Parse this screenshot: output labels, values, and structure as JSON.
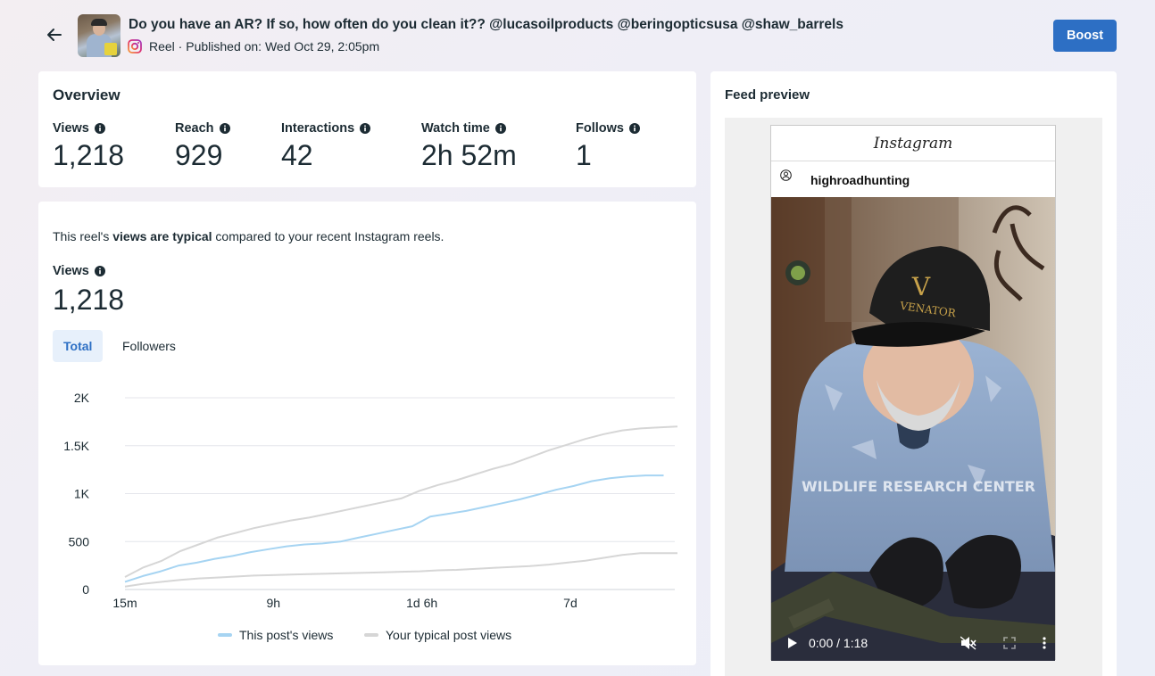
{
  "post": {
    "title": "Do you have an AR? If so, how often do you clean it?? @lucasoilproducts @beringopticsusa @shaw_barrels",
    "meta": "Reel · Published on: Wed Oct 29, 2:05pm"
  },
  "toolbar": {
    "boost_label": "Boost"
  },
  "overview": {
    "heading": "Overview",
    "metrics": [
      {
        "label": "Views",
        "value": "1,218"
      },
      {
        "label": "Reach",
        "value": "929"
      },
      {
        "label": "Interactions",
        "value": "42"
      },
      {
        "label": "Watch time",
        "value": "2h 52m"
      },
      {
        "label": "Follows",
        "value": "1"
      }
    ]
  },
  "views_card": {
    "summary_prefix": "This reel's ",
    "summary_bold": "views are typical",
    "summary_suffix": " compared to your recent Instagram reels.",
    "label": "Views",
    "value": "1,218",
    "tabs": [
      {
        "label": "Total",
        "active": true
      },
      {
        "label": "Followers",
        "active": false
      }
    ]
  },
  "chart_data": {
    "type": "line",
    "y_ticks": [
      "0",
      "500",
      "1K",
      "1.5K",
      "2K"
    ],
    "x_ticks": [
      "15m",
      "9h",
      "1d 6h",
      "7d"
    ],
    "ylim": [
      0,
      2000
    ],
    "grid": true,
    "legend_position": "bottom",
    "series": [
      {
        "name": "This post's views",
        "color": "#a6d4f2",
        "values": [
          80,
          140,
          190,
          250,
          280,
          320,
          350,
          390,
          420,
          450,
          470,
          480,
          500,
          540,
          580,
          620,
          660,
          760,
          790,
          820,
          860,
          900,
          940,
          990,
          1040,
          1080,
          1130,
          1160,
          1180,
          1190,
          1190
        ]
      },
      {
        "name": "Your typical post views",
        "color": "#d6d6d6",
        "values": [
          130,
          230,
          300,
          400,
          470,
          540,
          590,
          640,
          680,
          720,
          750,
          790,
          830,
          870,
          910,
          950,
          1030,
          1090,
          1140,
          1200,
          1260,
          1310,
          1380,
          1450,
          1510,
          1570,
          1620,
          1660,
          1680,
          1690,
          1700
        ]
      },
      {
        "name": "",
        "color": "#d6d6d6",
        "values": [
          30,
          60,
          80,
          100,
          115,
          125,
          135,
          145,
          150,
          155,
          160,
          165,
          170,
          175,
          180,
          185,
          190,
          200,
          205,
          215,
          225,
          235,
          245,
          260,
          280,
          300,
          330,
          360,
          380,
          380,
          380
        ]
      }
    ]
  },
  "preview": {
    "heading": "Feed preview",
    "ig_brand": "Instagram",
    "account": "highroadhunting",
    "hat_text": "VENATOR",
    "hat_letter": "V",
    "shirt_text": "WILDLIFE RESEARCH CENTER",
    "time": "0:00 / 1:18"
  }
}
